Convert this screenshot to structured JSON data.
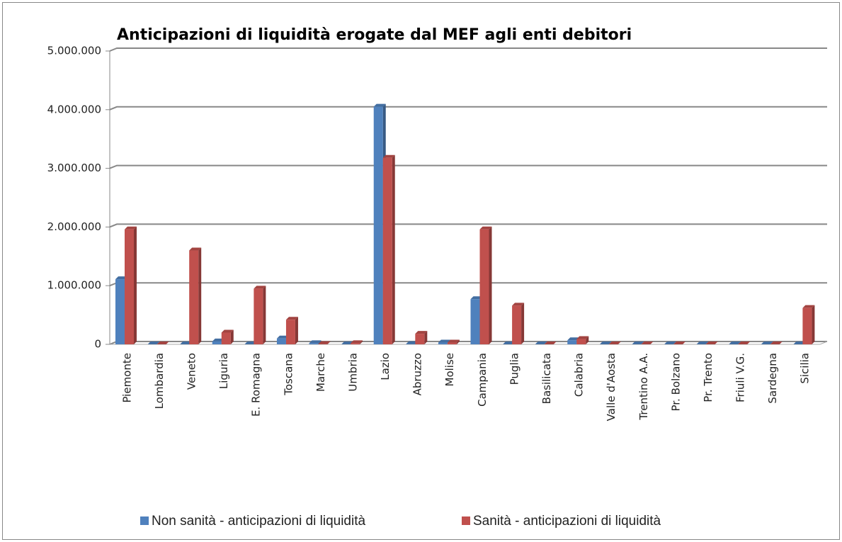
{
  "chart_data": {
    "type": "bar",
    "title": "Anticipazioni di liquidità erogate dal MEF agli enti debitori",
    "categories": [
      "Piemonte",
      "Lombardia",
      "Veneto",
      "Liguria",
      "E. Romagna",
      "Toscana",
      "Marche",
      "Umbria",
      "Lazio",
      "Abruzzo",
      "Molise",
      "Campania",
      "Puglia",
      "Basilicata",
      "Calabria",
      "Valle d'Aosta",
      "Trentino A.A.",
      "Pr. Bolzano",
      "Pr. Trento",
      "Friuli V.G.",
      "Sardegna",
      "Sicilia"
    ],
    "series": [
      {
        "name": "Non sanità - anticipazioni di liquidità",
        "color": "#4f81bd",
        "values": [
          1110000,
          0,
          0,
          50000,
          0,
          100000,
          20000,
          0,
          4050000,
          5000,
          30000,
          770000,
          0,
          0,
          70000,
          0,
          0,
          0,
          0,
          0,
          0,
          0
        ]
      },
      {
        "name": "Sanità - anticipazioni di liquidità",
        "color": "#c0504d",
        "values": [
          1960000,
          0,
          1600000,
          200000,
          950000,
          420000,
          5000,
          20000,
          3180000,
          180000,
          30000,
          1960000,
          660000,
          0,
          90000,
          0,
          0,
          0,
          0,
          0,
          0,
          620000
        ]
      }
    ],
    "ylim": [
      0,
      5000000
    ],
    "yticks": [
      0,
      {
        "value": 1000000,
        "label": "1.000.000"
      },
      {
        "value": 2000000,
        "label": "2.000.000"
      },
      {
        "value": 3000000,
        "label": "3.000.000"
      },
      {
        "value": 4000000,
        "label": "4.000.000"
      },
      {
        "value": 5000000,
        "label": "5.000.000"
      }
    ],
    "grid": true,
    "legend": "bottom"
  }
}
